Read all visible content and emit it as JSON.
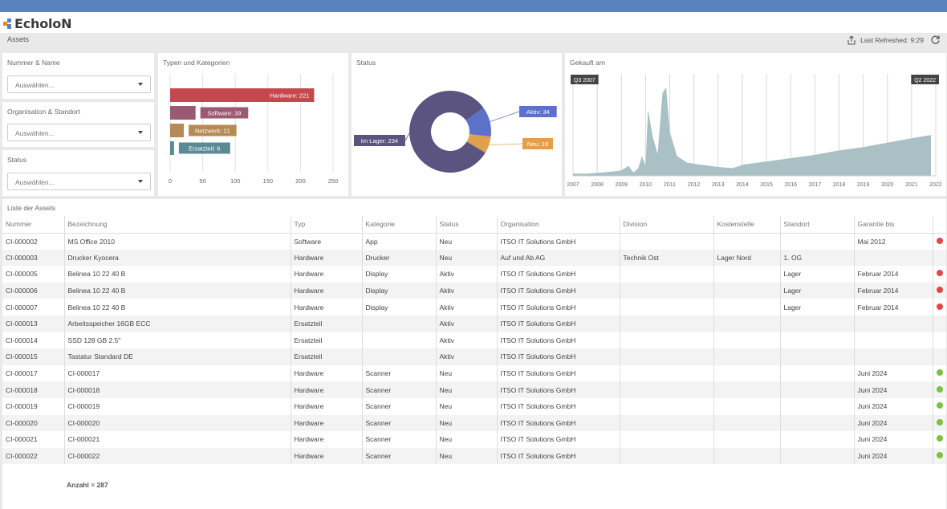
{
  "app": {
    "name": "EcholoN"
  },
  "breadcrumb": "Assets",
  "refresh": {
    "label": "Last Refreshed: 9:29"
  },
  "filters": [
    {
      "title": "Nummer & Name",
      "placeholder": "Auswählen..."
    },
    {
      "title": "Organisation & Standort",
      "placeholder": "Auswählen..."
    },
    {
      "title": "Status",
      "placeholder": "Auswählen..."
    }
  ],
  "colors": {
    "topbar": "#5a82bd",
    "red": "#e04848",
    "green": "#7cc23b",
    "hardware": "#c4484e",
    "software": "#9c5a72",
    "netzwerk": "#b58a55",
    "ersatzteil": "#5a8a94",
    "lager": "#5b5380",
    "aktiv": "#5b72c8",
    "neu": "#e0a04e",
    "area": "#a9c0c4"
  },
  "charts": {
    "typen_title": "Typen und Kategorien",
    "status_title": "Status",
    "gekauft_title": "Gekauft am"
  },
  "chart_data": [
    {
      "type": "bar",
      "title": "Typen und Kategorien",
      "orientation": "horizontal",
      "categories": [
        "Hardware",
        "Software",
        "Netzwerk",
        "Ersatzteil"
      ],
      "values": [
        221,
        39,
        21,
        6
      ],
      "labels": [
        "Hardware: 221",
        "Software: 39",
        "Netzwerk: 21",
        "Ersatzteil: 6"
      ],
      "xticks": [
        "0",
        "50",
        "100",
        "150",
        "200",
        "250"
      ],
      "xlim": [
        0,
        250
      ],
      "grid": true
    },
    {
      "type": "pie",
      "title": "Status",
      "donut": true,
      "categories": [
        "Im Lager",
        "Aktiv",
        "Neu"
      ],
      "values": [
        234,
        34,
        19
      ],
      "labels": [
        "Im Lager: 234",
        "Aktiv: 34",
        "Neu: 19"
      ]
    },
    {
      "type": "area",
      "title": "Gekauft am",
      "xticks": [
        "2007",
        "2008",
        "2009",
        "2010",
        "2011",
        "2012",
        "2013",
        "2014",
        "2015",
        "2016",
        "2017",
        "2018",
        "2019",
        "2020",
        "2021",
        "2022"
      ],
      "range_labels": [
        "Q3 2007",
        "Q2 2022"
      ],
      "x": [
        2007.0,
        2007.6,
        2008.2,
        2008.7,
        2009.0,
        2009.3,
        2009.5,
        2009.7,
        2009.85,
        2010.0,
        2010.1,
        2010.3,
        2010.5,
        2010.7,
        2010.85,
        2011.0,
        2011.3,
        2011.7,
        2012.3,
        2013.0,
        2013.6,
        2013.9,
        2014.0,
        2015.0,
        2016.0,
        2017.0,
        2018.0,
        2019.0,
        2020.0,
        2021.0,
        2021.8
      ],
      "values": [
        2,
        2,
        3,
        4,
        5,
        9,
        3,
        7,
        18,
        9,
        60,
        35,
        20,
        75,
        80,
        40,
        18,
        12,
        10,
        8,
        7,
        9,
        10,
        13,
        16,
        19,
        23,
        26,
        30,
        34,
        37
      ]
    }
  ],
  "table": {
    "title": "Liste der Assets",
    "columns": [
      "Nummer",
      "Bezeichnung",
      "Typ",
      "Kategorie",
      "Status",
      "Organisation",
      "Division",
      "Kostenstelle",
      "Standort",
      "Garantie bis",
      ""
    ],
    "rows": [
      [
        "CI-000002",
        "MS Office 2010",
        "Software",
        "App",
        "Neu",
        "ITSO IT Solutions GmbH",
        "",
        "",
        "",
        "Mai 2012",
        "red"
      ],
      [
        "CI-000003",
        "Drucker Kyocera",
        "Hardware",
        "Drucker",
        "Neu",
        "Auf und Ab AG",
        "Technik Ost",
        "Lager Nord",
        "1. OG",
        "",
        ""
      ],
      [
        "CI-000005",
        "Belinea 10 22 40 B",
        "Hardware",
        "Display",
        "Aktiv",
        "ITSO IT Solutions GmbH",
        "",
        "",
        "Lager",
        "Februar 2014",
        "red"
      ],
      [
        "CI-000006",
        "Belinea 10 22 40 B",
        "Hardware",
        "Display",
        "Aktiv",
        "ITSO IT Solutions GmbH",
        "",
        "",
        "Lager",
        "Februar 2014",
        "red"
      ],
      [
        "CI-000007",
        "Belinea 10 22 40 B",
        "Hardware",
        "Display",
        "Aktiv",
        "ITSO IT Solutions GmbH",
        "",
        "",
        "Lager",
        "Februar 2014",
        "red"
      ],
      [
        "CI-000013",
        "Arbeitsspeicher 16GB ECC",
        "Ersatzteil",
        "",
        "Aktiv",
        "ITSO IT Solutions GmbH",
        "",
        "",
        "",
        "",
        ""
      ],
      [
        "CI-000014",
        "SSD 128 GB 2.5\"",
        "Ersatzteil",
        "",
        "Aktiv",
        "ITSO IT Solutions GmbH",
        "",
        "",
        "",
        "",
        ""
      ],
      [
        "CI-000015",
        "Tastatur Standard DE",
        "Ersatzteil",
        "",
        "Aktiv",
        "ITSO IT Solutions GmbH",
        "",
        "",
        "",
        "",
        ""
      ],
      [
        "CI-000017",
        "CI-000017",
        "Hardware",
        "Scanner",
        "Neu",
        "ITSO IT Solutions GmbH",
        "",
        "",
        "",
        "Juni 2024",
        "green"
      ],
      [
        "CI-000018",
        "CI-000018",
        "Hardware",
        "Scanner",
        "Neu",
        "ITSO IT Solutions GmbH",
        "",
        "",
        "",
        "Juni 2024",
        "green"
      ],
      [
        "CI-000019",
        "CI-000019",
        "Hardware",
        "Scanner",
        "Neu",
        "ITSO IT Solutions GmbH",
        "",
        "",
        "",
        "Juni 2024",
        "green"
      ],
      [
        "CI-000020",
        "CI-000020",
        "Hardware",
        "Scanner",
        "Neu",
        "ITSO IT Solutions GmbH",
        "",
        "",
        "",
        "Juni 2024",
        "green"
      ],
      [
        "CI-000021",
        "CI-000021",
        "Hardware",
        "Scanner",
        "Neu",
        "ITSO IT Solutions GmbH",
        "",
        "",
        "",
        "Juni 2024",
        "green"
      ],
      [
        "CI-000022",
        "CI-000022",
        "Hardware",
        "Scanner",
        "Neu",
        "ITSO IT Solutions GmbH",
        "",
        "",
        "",
        "Juni 2024",
        "green"
      ]
    ],
    "footer": "Anzahl = 287"
  }
}
